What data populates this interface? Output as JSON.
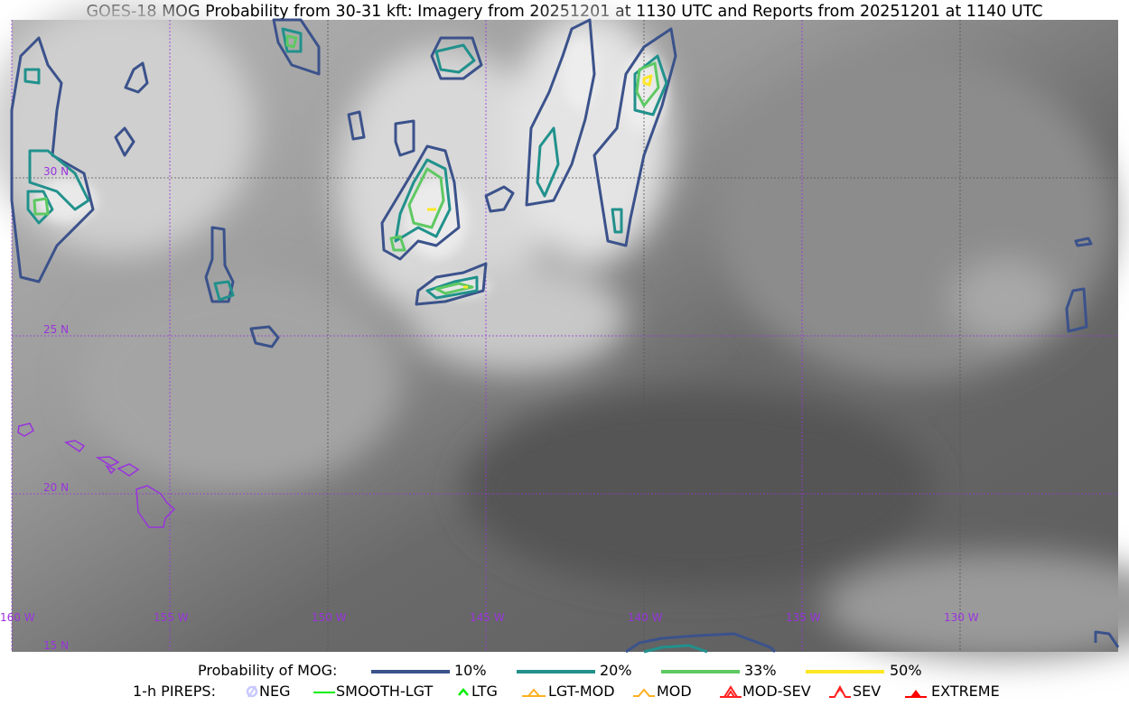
{
  "title": "GOES-18 MOG Probability from 30-31 kft: Imagery from 20251201 at 1130 UTC and Reports from 20251201 at 1140 UTC",
  "map": {
    "longitude_labels": [
      "160 W",
      "155 W",
      "150 W",
      "145 W",
      "140 W",
      "135 W",
      "130 W"
    ],
    "latitude_labels": [
      "30 N",
      "25 N",
      "20 N",
      "15 N"
    ],
    "grid_color": "#9933dd",
    "coastline_color": "#9933dd"
  },
  "legend": {
    "probability": {
      "label": "Probability of MOG:",
      "levels": [
        {
          "label": "10%",
          "color": "#3b528b"
        },
        {
          "label": "20%",
          "color": "#21918c"
        },
        {
          "label": "33%",
          "color": "#5ec962"
        },
        {
          "label": "50%",
          "color": "#fde725"
        }
      ]
    },
    "pireps": {
      "label": "1-h PIREPS:",
      "items": [
        {
          "label": "NEG",
          "icon": "neg-icon",
          "color": "#c8c8ff"
        },
        {
          "label": "SMOOTH-LGT",
          "icon": "smooth-lgt-line-icon",
          "color": "#00ee00"
        },
        {
          "label": "LTG",
          "icon": "ltg-chevron-icon",
          "color": "#00ee00"
        },
        {
          "label": "LGT-MOD",
          "icon": "lgt-mod-icon",
          "color": "#ffb020"
        },
        {
          "label": "MOD",
          "icon": "mod-chevron-icon",
          "color": "#ffb020"
        },
        {
          "label": "MOD-SEV",
          "icon": "mod-sev-icon",
          "color": "#ff2020"
        },
        {
          "label": "SEV",
          "icon": "sev-icon",
          "color": "#ff2020"
        },
        {
          "label": "EXTREME",
          "icon": "extreme-icon",
          "color": "#ff0000"
        }
      ]
    }
  }
}
